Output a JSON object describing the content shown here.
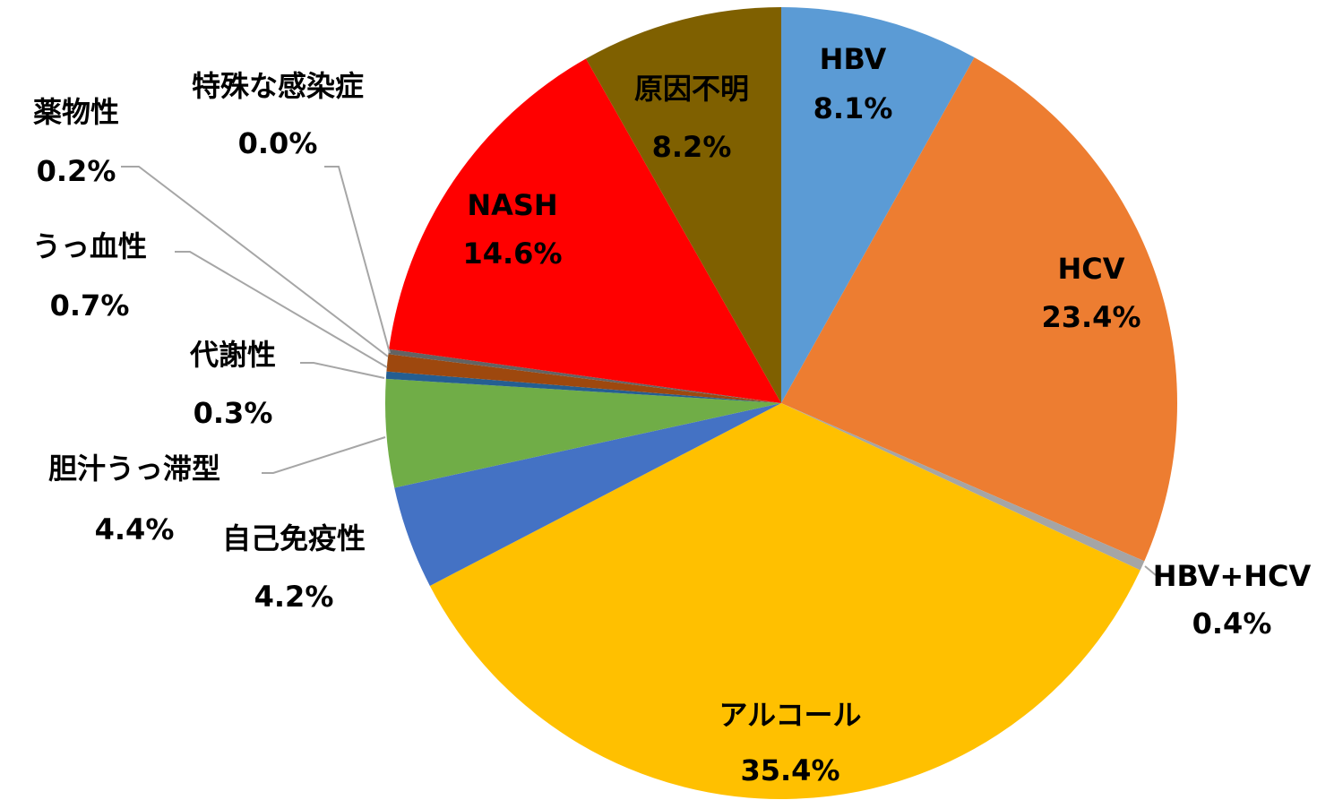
{
  "chart_data": {
    "type": "pie",
    "categories": [
      "HBV",
      "HCV",
      "HBV+HCV",
      "アルコール",
      "自己免疫性",
      "胆汁うっ滞型",
      "代謝性",
      "うっ血性",
      "薬物性",
      "特殊な感染症",
      "NASH",
      "原因不明"
    ],
    "values": [
      8.1,
      23.4,
      0.4,
      35.4,
      4.2,
      4.4,
      0.3,
      0.7,
      0.2,
      0.0,
      14.6,
      8.2
    ],
    "value_labels": [
      "8.1%",
      "23.4%",
      "0.4%",
      "35.4%",
      "4.2%",
      "4.4%",
      "0.3%",
      "0.7%",
      "0.2%",
      "0.0%",
      "14.6%",
      "8.2%"
    ],
    "colors": [
      "#5b9bd5",
      "#ed7d31",
      "#a5a5a5",
      "#ffc000",
      "#4472c4",
      "#70ad47",
      "#255e91",
      "#9e480e",
      "#636363",
      "#997300",
      "#ff0000",
      "#7f6000"
    ]
  }
}
